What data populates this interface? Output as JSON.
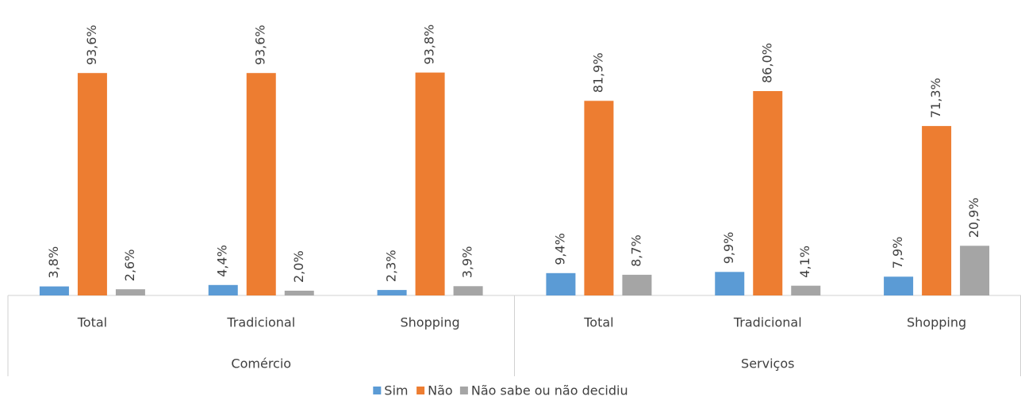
{
  "chart_data": {
    "type": "bar",
    "groups": [
      {
        "name": "Comércio",
        "categories": [
          "Total",
          "Tradicional",
          "Shopping"
        ]
      },
      {
        "name": "Serviços",
        "categories": [
          "Total",
          "Tradicional",
          "Shopping"
        ]
      }
    ],
    "series": [
      {
        "name": "Sim",
        "color": "#5b9bd5",
        "values": [
          3.8,
          4.4,
          2.3,
          9.4,
          9.9,
          7.9
        ],
        "value_labels": [
          "3,8%",
          "4,4%",
          "2,3%",
          "9,4%",
          "9,9%",
          "7,9%"
        ]
      },
      {
        "name": "Não",
        "color": "#ed7d31",
        "values": [
          93.6,
          93.6,
          93.8,
          81.9,
          86.0,
          71.3
        ],
        "value_labels": [
          "93,6%",
          "93,6%",
          "93,8%",
          "81,9%",
          "86,0%",
          "71,3%"
        ]
      },
      {
        "name": "Não sabe ou não decidiu",
        "color": "#a5a5a5",
        "values": [
          2.6,
          2.0,
          3.9,
          8.7,
          4.1,
          20.9
        ],
        "value_labels": [
          "2,6%",
          "2,0%",
          "3,9%",
          "8,7%",
          "4,1%",
          "20,9%"
        ]
      }
    ],
    "legend": "bottom"
  }
}
